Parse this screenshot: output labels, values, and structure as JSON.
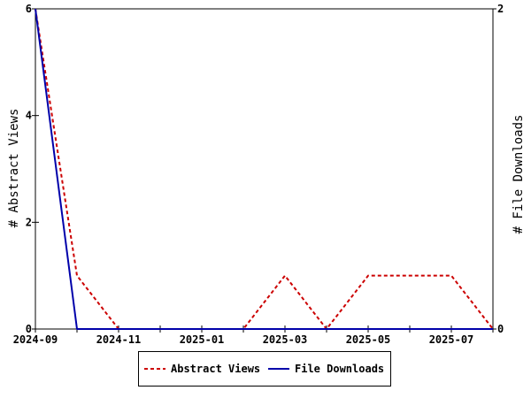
{
  "chart_data": {
    "type": "line",
    "x": [
      "2024-09",
      "2024-10",
      "2024-11",
      "2024-12",
      "2025-01",
      "2025-02",
      "2025-03",
      "2025-04",
      "2025-05",
      "2025-06",
      "2025-07",
      "2025-08"
    ],
    "x_tick_labels": [
      "2024-09",
      "2024-11",
      "2025-01",
      "2025-03",
      "2025-05",
      "2025-07"
    ],
    "series": [
      {
        "name": "Abstract Views",
        "axis": "left",
        "color": "#cc0000",
        "style": "dashed",
        "values": [
          6,
          1,
          0,
          0,
          0,
          0,
          1,
          0,
          1,
          1,
          1,
          0
        ]
      },
      {
        "name": "File Downloads",
        "axis": "right",
        "color": "#0000aa",
        "style": "solid",
        "values": [
          2,
          0,
          0,
          0,
          0,
          0,
          0,
          0,
          0,
          0,
          0,
          0
        ]
      }
    ],
    "ylabel_left": "# Abstract Views",
    "ylabel_right": "# File Downloads",
    "ylim_left": [
      0,
      6
    ],
    "ylim_right": [
      0,
      2
    ],
    "yticks_left": [
      "0",
      "2",
      "4",
      "6"
    ],
    "yticks_right": [
      "0",
      "2"
    ],
    "grid": false,
    "legend_position": "bottom"
  }
}
